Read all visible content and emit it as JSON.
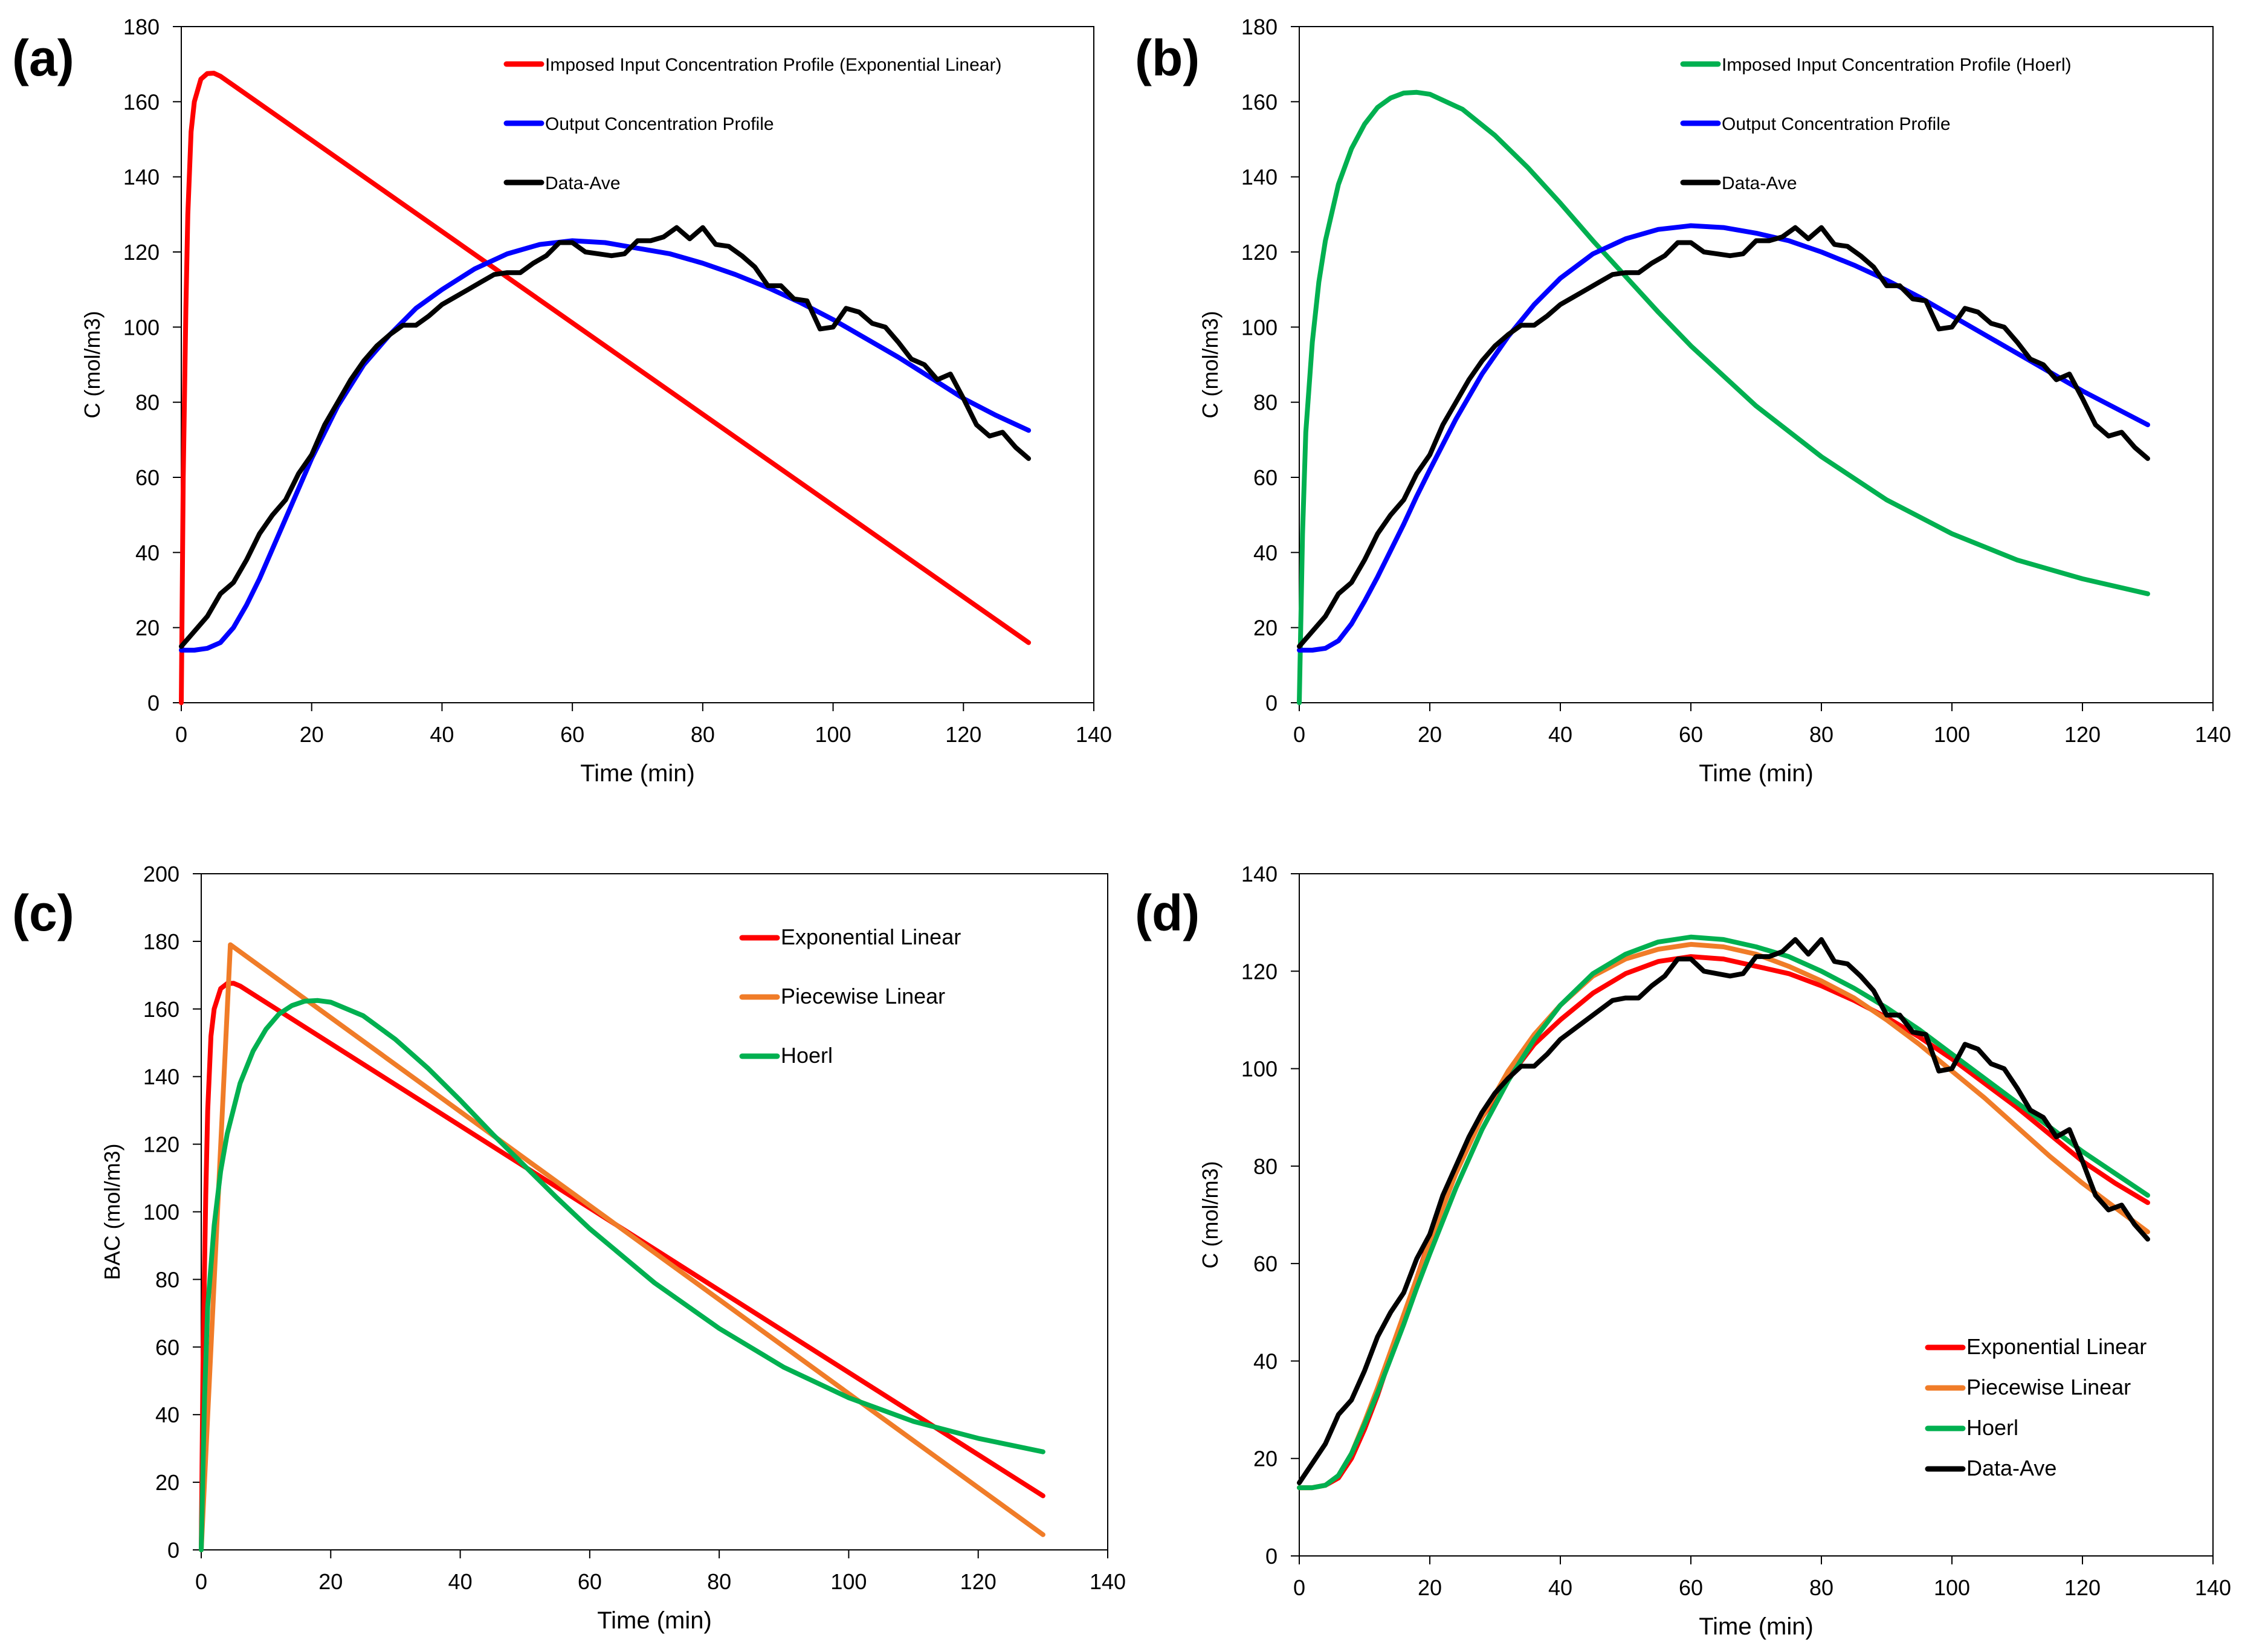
{
  "colors": {
    "exponential_linear": "#ff0000",
    "piecewise_linear": "#f07c28",
    "hoerl": "#00b050",
    "output": "#0000ff",
    "data": "#000000"
  },
  "chart_data": [
    {
      "panel": "(a)",
      "type": "line",
      "xlabel": "Time (min)",
      "ylabel": "C (mol/m3)",
      "xlim": [
        0,
        140
      ],
      "ylim": [
        0,
        180
      ],
      "xticks": [
        0,
        20,
        40,
        60,
        80,
        100,
        120,
        140
      ],
      "yticks": [
        0,
        20,
        40,
        60,
        80,
        100,
        120,
        140,
        160,
        180
      ],
      "legend_position": "top-right",
      "series": [
        {
          "name": "Imposed Input Concentration Profile (Exponential Linear)",
          "color": "#ff0000",
          "points": [
            [
              0,
              0
            ],
            [
              0.3,
              60
            ],
            [
              0.7,
              105
            ],
            [
              1,
              130
            ],
            [
              1.5,
              152
            ],
            [
              2,
              160
            ],
            [
              3,
              166
            ],
            [
              4,
              167.5
            ],
            [
              5,
              167.6
            ],
            [
              6,
              166.8
            ],
            [
              130,
              16
            ]
          ]
        },
        {
          "name": "Output Concentration Profile",
          "color": "#0000ff",
          "points": [
            [
              0,
              14
            ],
            [
              2,
              14
            ],
            [
              4,
              14.5
            ],
            [
              6,
              16
            ],
            [
              8,
              20
            ],
            [
              10,
              26
            ],
            [
              12,
              33
            ],
            [
              14,
              41
            ],
            [
              16,
              49
            ],
            [
              18,
              57
            ],
            [
              20,
              65
            ],
            [
              24,
              79
            ],
            [
              28,
              90
            ],
            [
              32,
              98
            ],
            [
              36,
              105
            ],
            [
              40,
              110
            ],
            [
              45,
              115.5
            ],
            [
              50,
              119.5
            ],
            [
              55,
              122
            ],
            [
              60,
              123
            ],
            [
              65,
              122.5
            ],
            [
              70,
              121
            ],
            [
              75,
              119.5
            ],
            [
              80,
              117
            ],
            [
              85,
              114
            ],
            [
              90,
              110.5
            ],
            [
              95,
              106.5
            ],
            [
              100,
              102
            ],
            [
              105,
              97
            ],
            [
              110,
              92
            ],
            [
              115,
              86.5
            ],
            [
              120,
              81
            ],
            [
              125,
              76.5
            ],
            [
              130,
              72.5
            ]
          ]
        },
        {
          "name": "Data-Ave",
          "color": "#000000",
          "points": [
            [
              0,
              15
            ],
            [
              2,
              19
            ],
            [
              4,
              23
            ],
            [
              6,
              29
            ],
            [
              8,
              32
            ],
            [
              10,
              38
            ],
            [
              12,
              45
            ],
            [
              14,
              50
            ],
            [
              16,
              54
            ],
            [
              18,
              61
            ],
            [
              20,
              66
            ],
            [
              22,
              74
            ],
            [
              24,
              80
            ],
            [
              26,
              86
            ],
            [
              28,
              91
            ],
            [
              30,
              95
            ],
            [
              32,
              98
            ],
            [
              34,
              100.5
            ],
            [
              36,
              100.5
            ],
            [
              38,
              103
            ],
            [
              40,
              106
            ],
            [
              42,
              108
            ],
            [
              44,
              110
            ],
            [
              46,
              112
            ],
            [
              48,
              114
            ],
            [
              50,
              114.5
            ],
            [
              52,
              114.5
            ],
            [
              54,
              117
            ],
            [
              56,
              119
            ],
            [
              58,
              122.5
            ],
            [
              60,
              122.5
            ],
            [
              62,
              120
            ],
            [
              64,
              119.5
            ],
            [
              66,
              119
            ],
            [
              68,
              119.5
            ],
            [
              70,
              123
            ],
            [
              72,
              123
            ],
            [
              74,
              124
            ],
            [
              76,
              126.5
            ],
            [
              78,
              123.5
            ],
            [
              80,
              126.5
            ],
            [
              82,
              122
            ],
            [
              84,
              121.5
            ],
            [
              86,
              119
            ],
            [
              88,
              116
            ],
            [
              90,
              111
            ],
            [
              92,
              111
            ],
            [
              94,
              107.5
            ],
            [
              96,
              107
            ],
            [
              98,
              99.5
            ],
            [
              100,
              100
            ],
            [
              102,
              105
            ],
            [
              104,
              104
            ],
            [
              106,
              101
            ],
            [
              108,
              100
            ],
            [
              110,
              96
            ],
            [
              112,
              91.5
            ],
            [
              114,
              90
            ],
            [
              116,
              86
            ],
            [
              118,
              87.5
            ],
            [
              120,
              81
            ],
            [
              122,
              74
            ],
            [
              124,
              71
            ],
            [
              126,
              72
            ],
            [
              128,
              68
            ],
            [
              130,
              65
            ]
          ]
        }
      ]
    },
    {
      "panel": "(b)",
      "type": "line",
      "xlabel": "Time (min)",
      "ylabel": "C (mol/m3)",
      "xlim": [
        0,
        140
      ],
      "ylim": [
        0,
        180
      ],
      "xticks": [
        0,
        20,
        40,
        60,
        80,
        100,
        120,
        140
      ],
      "yticks": [
        0,
        20,
        40,
        60,
        80,
        100,
        120,
        140,
        160,
        180
      ],
      "legend_position": "top-right",
      "series": [
        {
          "name": "Imposed Input Concentration Profile (Hoerl)",
          "color": "#00b050",
          "points": [
            [
              0,
              0
            ],
            [
              0.5,
              45
            ],
            [
              1,
              72
            ],
            [
              2,
              96
            ],
            [
              3,
              112
            ],
            [
              4,
              123
            ],
            [
              6,
              138
            ],
            [
              8,
              147.5
            ],
            [
              10,
              154
            ],
            [
              12,
              158.5
            ],
            [
              14,
              161
            ],
            [
              16,
              162.3
            ],
            [
              18,
              162.5
            ],
            [
              20,
              162
            ],
            [
              25,
              158
            ],
            [
              30,
              151
            ],
            [
              35,
              142.5
            ],
            [
              40,
              133
            ],
            [
              45,
              123
            ],
            [
              50,
              113.5
            ],
            [
              55,
              104
            ],
            [
              60,
              95
            ],
            [
              70,
              79
            ],
            [
              80,
              65.5
            ],
            [
              90,
              54
            ],
            [
              100,
              45
            ],
            [
              110,
              38
            ],
            [
              120,
              33
            ],
            [
              130,
              29
            ]
          ]
        },
        {
          "name": "Output Concentration Profile",
          "color": "#0000ff",
          "points": [
            [
              0,
              14
            ],
            [
              2,
              14
            ],
            [
              4,
              14.5
            ],
            [
              6,
              16.5
            ],
            [
              8,
              21
            ],
            [
              10,
              27
            ],
            [
              12,
              33.5
            ],
            [
              14,
              40.5
            ],
            [
              16,
              47.5
            ],
            [
              18,
              55
            ],
            [
              20,
              62
            ],
            [
              24,
              75.5
            ],
            [
              28,
              87.5
            ],
            [
              32,
              97.5
            ],
            [
              36,
              106
            ],
            [
              40,
              113
            ],
            [
              45,
              119.5
            ],
            [
              50,
              123.5
            ],
            [
              55,
              126
            ],
            [
              60,
              127
            ],
            [
              65,
              126.5
            ],
            [
              70,
              125
            ],
            [
              75,
              123
            ],
            [
              80,
              120
            ],
            [
              85,
              116.5
            ],
            [
              90,
              112.5
            ],
            [
              95,
              108
            ],
            [
              100,
              103
            ],
            [
              105,
              98
            ],
            [
              110,
              93
            ],
            [
              115,
              88
            ],
            [
              120,
              83
            ],
            [
              125,
              78.5
            ],
            [
              130,
              74
            ]
          ]
        },
        {
          "name": "Data-Ave",
          "color": "#000000",
          "ref": "same as panel (a) Data-Ave"
        }
      ]
    },
    {
      "panel": "(c)",
      "type": "line",
      "xlabel": "Time (min)",
      "ylabel": "BAC (mol/m3)",
      "xlim": [
        0,
        140
      ],
      "ylim": [
        0,
        200
      ],
      "xticks": [
        0,
        20,
        40,
        60,
        80,
        100,
        120,
        140
      ],
      "yticks": [
        0,
        20,
        40,
        60,
        80,
        100,
        120,
        140,
        160,
        180,
        200
      ],
      "legend_position": "top-right",
      "series": [
        {
          "name": "Exponential Linear",
          "color": "#ff0000",
          "ref": "panel (a) input"
        },
        {
          "name": "Piecewise Linear",
          "color": "#f07c28",
          "points": [
            [
              0,
              0
            ],
            [
              4.5,
              179
            ],
            [
              130,
              4.5
            ]
          ]
        },
        {
          "name": "Hoerl",
          "color": "#00b050",
          "ref": "panel (b) input"
        }
      ]
    },
    {
      "panel": "(d)",
      "type": "line",
      "xlabel": "Time (min)",
      "ylabel": "C (mol/m3)",
      "xlim": [
        0,
        140
      ],
      "ylim": [
        0,
        140
      ],
      "xticks": [
        0,
        20,
        40,
        60,
        80,
        100,
        120,
        140
      ],
      "yticks": [
        0,
        20,
        40,
        60,
        80,
        100,
        120,
        140
      ],
      "legend_position": "bottom-right",
      "series": [
        {
          "name": "Exponential Linear",
          "color": "#ff0000",
          "ref": "panel (a) output"
        },
        {
          "name": "Piecewise Linear",
          "color": "#f07c28",
          "points": [
            [
              0,
              14
            ],
            [
              2,
              14
            ],
            [
              4,
              14.5
            ],
            [
              6,
              16.5
            ],
            [
              8,
              21
            ],
            [
              10,
              27.5
            ],
            [
              12,
              34.5
            ],
            [
              14,
              42
            ],
            [
              16,
              49.5
            ],
            [
              18,
              57
            ],
            [
              20,
              64.5
            ],
            [
              24,
              78.5
            ],
            [
              28,
              90
            ],
            [
              32,
              99.5
            ],
            [
              36,
              107
            ],
            [
              40,
              113
            ],
            [
              45,
              119
            ],
            [
              50,
              122.5
            ],
            [
              55,
              124.5
            ],
            [
              60,
              125.5
            ],
            [
              65,
              125
            ],
            [
              70,
              123.5
            ],
            [
              75,
              121
            ],
            [
              80,
              118
            ],
            [
              85,
              114.5
            ],
            [
              90,
              110
            ],
            [
              95,
              105
            ],
            [
              100,
              99.5
            ],
            [
              105,
              94
            ],
            [
              110,
              88
            ],
            [
              115,
              82
            ],
            [
              120,
              76.5
            ],
            [
              125,
              71.5
            ],
            [
              130,
              66.5
            ]
          ]
        },
        {
          "name": "Hoerl",
          "color": "#00b050",
          "ref": "panel (b) output"
        },
        {
          "name": "Data-Ave",
          "color": "#000000",
          "ref": "same as panel (a) Data-Ave"
        }
      ]
    }
  ]
}
